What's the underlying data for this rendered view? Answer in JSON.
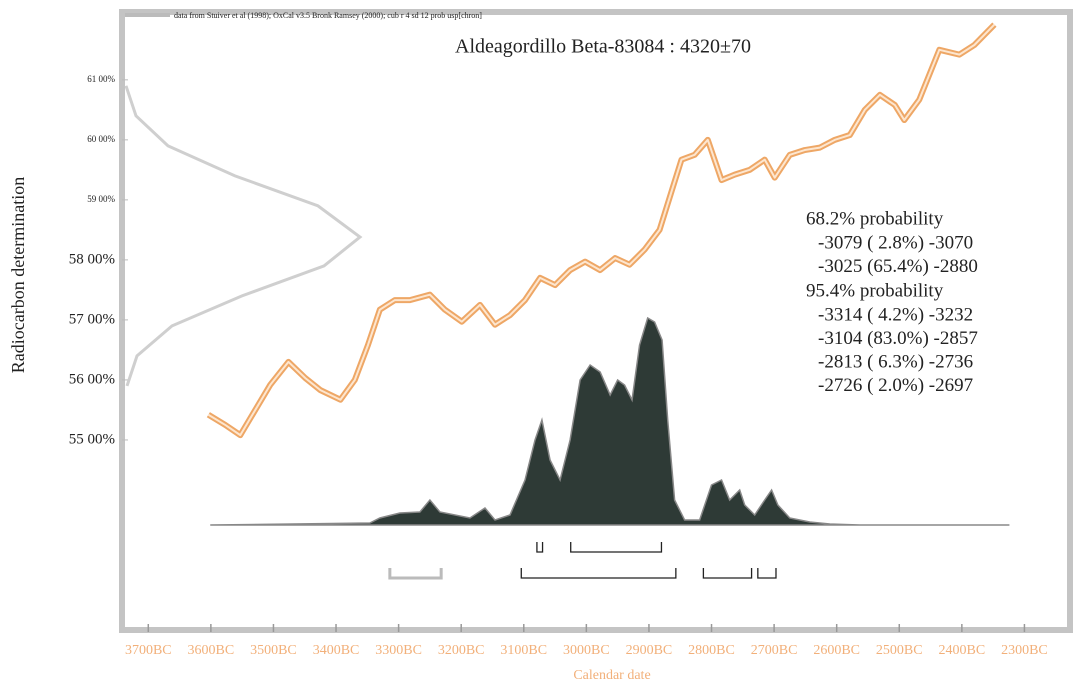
{
  "chart_data": {
    "type": "calibration",
    "title": "Aldeagordillo Beta-83084 : 4320±70",
    "note": "data from Stuiver et al (1998); OxCal v3.5 Bronk Ramsey (2000); cub r 4 sd 12 prob usp[chron]",
    "xlabel": "Calendar date",
    "ylabel": "Radiocarbon determination",
    "xlim": [
      -3742,
      -2224
    ],
    "xticks": [
      {
        "value": -3700,
        "label": "3700BC"
      },
      {
        "value": -3600,
        "label": "3600BC"
      },
      {
        "value": -3500,
        "label": "3500BC"
      },
      {
        "value": -3400,
        "label": "3400BC"
      },
      {
        "value": -3300,
        "label": "3300BC"
      },
      {
        "value": -3200,
        "label": "3200BC"
      },
      {
        "value": -3100,
        "label": "3100BC"
      },
      {
        "value": -3000,
        "label": "3000BC"
      },
      {
        "value": -2900,
        "label": "2900BC"
      },
      {
        "value": -2800,
        "label": "2800BC"
      },
      {
        "value": -2700,
        "label": "2700BC"
      },
      {
        "value": -2600,
        "label": "2600BC"
      },
      {
        "value": -2500,
        "label": "2500BC"
      },
      {
        "value": -2400,
        "label": "2400BC"
      },
      {
        "value": -2300,
        "label": "2300BC"
      }
    ],
    "ylim": [
      5180,
      6213
    ],
    "yticks": [
      {
        "value": 5500,
        "label": "55 00%"
      },
      {
        "value": 5600,
        "label": "56 00%"
      },
      {
        "value": 5700,
        "label": "57 00%"
      },
      {
        "value": 5800,
        "label": "58 00%"
      },
      {
        "value": 5900,
        "label": "59 00%"
      },
      {
        "value": 6000,
        "label": "60 00%"
      },
      {
        "value": 6100,
        "label": "61 00%"
      }
    ],
    "curve": {
      "color": "#eea766",
      "x": [
        -3604,
        -3577,
        -3553,
        -3529,
        -3505,
        -3476,
        -3449,
        -3425,
        -3393,
        -3370,
        -3349,
        -3330,
        -3306,
        -3282,
        -3250,
        -3226,
        -3199,
        -3170,
        -3146,
        -3122,
        -3098,
        -3074,
        -3050,
        -3026,
        -3002,
        -2978,
        -2954,
        -2931,
        -2907,
        -2883,
        -2863,
        -2848,
        -2827,
        -2806,
        -2784,
        -2763,
        -2739,
        -2715,
        -2699,
        -2675,
        -2651,
        -2627,
        -2603,
        -2579,
        -2555,
        -2531,
        -2507,
        -2492,
        -2468,
        -2436,
        -2404,
        -2380,
        -2348
      ],
      "y": [
        5542,
        5525,
        5508,
        5550,
        5592,
        5630,
        5603,
        5583,
        5567,
        5600,
        5658,
        5717,
        5733,
        5733,
        5742,
        5717,
        5697,
        5725,
        5692,
        5708,
        5733,
        5770,
        5758,
        5783,
        5797,
        5783,
        5803,
        5792,
        5817,
        5850,
        5917,
        5967,
        5975,
        6000,
        5933,
        5942,
        5950,
        5967,
        5937,
        5975,
        5983,
        5987,
        6000,
        6008,
        6050,
        6075,
        6058,
        6033,
        6067,
        6150,
        6142,
        6158,
        6192
      ]
    },
    "distribution": {
      "color": "#2e3a36",
      "x": [
        -3601,
        -3346,
        -3330,
        -3298,
        -3266,
        -3250,
        -3234,
        -3186,
        -3162,
        -3146,
        -3122,
        -3098,
        -3082,
        -3071,
        -3058,
        -3042,
        -3026,
        -3010,
        -2994,
        -2978,
        -2962,
        -2950,
        -2939,
        -2927,
        -2915,
        -2902,
        -2891,
        -2879,
        -2870,
        -2859,
        -2843,
        -2819,
        -2800,
        -2784,
        -2771,
        -2755,
        -2747,
        -2731,
        -2715,
        -2704,
        -2694,
        -2675,
        -2643,
        -2611,
        -2563,
        -2324
      ],
      "values": [
        0,
        2,
        7,
        12,
        13,
        25,
        13,
        7,
        17,
        5,
        10,
        45,
        85,
        105,
        65,
        45,
        85,
        145,
        160,
        153,
        130,
        145,
        140,
        125,
        180,
        207,
        203,
        185,
        105,
        25,
        5,
        5,
        40,
        45,
        25,
        35,
        20,
        10,
        25,
        35,
        20,
        7,
        3,
        1,
        0,
        0
      ]
    },
    "measurement": {
      "color": "#cfcfcf",
      "y": [
        5590,
        5640,
        5690,
        5740,
        5790,
        5838,
        5890,
        5940,
        5990,
        6040,
        6090
      ],
      "values": [
        3,
        13,
        48,
        118,
        200,
        236,
        194,
        111,
        44,
        12,
        2
      ]
    },
    "ranges": [
      {
        "label": "68.2% probability",
        "intervals": [
          {
            "from": -3079,
            "to": -3070,
            "label": "-3079 ( 2.8%) -3070",
            "color": "#222"
          },
          {
            "from": -3025,
            "to": -2880,
            "label": "-3025 (65.4%) -2880",
            "color": "#222"
          }
        ]
      },
      {
        "label": "95.4% probability",
        "intervals": [
          {
            "from": -3314,
            "to": -3232,
            "label": "-3314 ( 4.2%) -3232",
            "color": "#bbb"
          },
          {
            "from": -3104,
            "to": -2857,
            "label": "-3104 (83.0%) -2857",
            "color": "#222"
          },
          {
            "from": -2813,
            "to": -2736,
            "label": "-2813 ( 6.3%) -2736",
            "color": "#222"
          },
          {
            "from": -2726,
            "to": -2697,
            "label": "-2726 ( 2.0%) -2697",
            "color": "#222"
          }
        ]
      }
    ]
  }
}
